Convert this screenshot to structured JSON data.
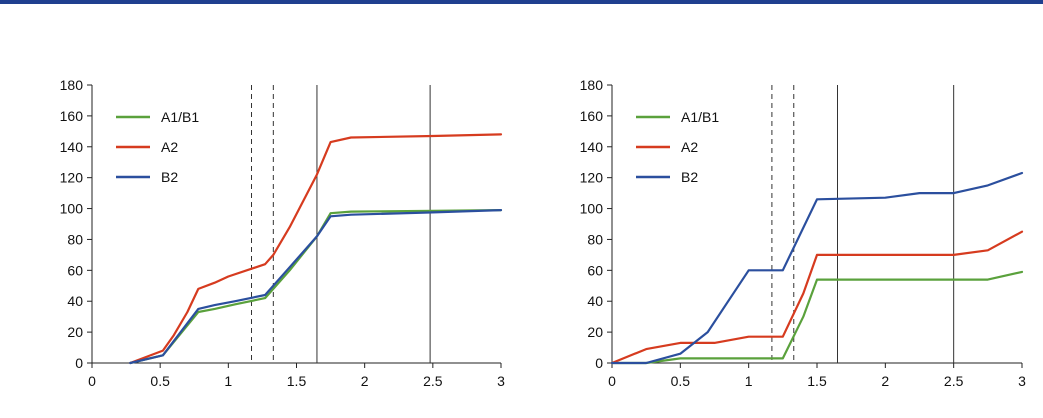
{
  "theme": {
    "top_rule_color": "#1f3f8f"
  },
  "chart_data": [
    {
      "type": "line",
      "xlim": [
        0,
        3
      ],
      "ylim": [
        0,
        180
      ],
      "xticks": [
        0,
        0.5,
        1,
        1.5,
        2,
        2.5,
        3
      ],
      "yticks": [
        0,
        20,
        40,
        60,
        80,
        100,
        120,
        140,
        160,
        180
      ],
      "grid": false,
      "legend_position": "top-left",
      "dashed_vlines": [
        1.17,
        1.33
      ],
      "solid_vlines": [
        1.65,
        2.48
      ],
      "series": [
        {
          "name": "A1/B1",
          "color": "#5aa13c",
          "points": [
            [
              0.28,
              0
            ],
            [
              0.52,
              5
            ],
            [
              0.78,
              33
            ],
            [
              0.9,
              35
            ],
            [
              1.05,
              38
            ],
            [
              1.27,
              42
            ],
            [
              1.45,
              60
            ],
            [
              1.65,
              82
            ],
            [
              1.75,
              97
            ],
            [
              1.9,
              98
            ],
            [
              2.5,
              98.5
            ],
            [
              3.0,
              99
            ]
          ]
        },
        {
          "name": "A2",
          "color": "#d63b1f",
          "points": [
            [
              0.28,
              0
            ],
            [
              0.52,
              8
            ],
            [
              0.6,
              18
            ],
            [
              0.7,
              33
            ],
            [
              0.78,
              48
            ],
            [
              0.9,
              52
            ],
            [
              1.0,
              56
            ],
            [
              1.27,
              64
            ],
            [
              1.33,
              70
            ],
            [
              1.45,
              88
            ],
            [
              1.65,
              122
            ],
            [
              1.75,
              143
            ],
            [
              1.9,
              146
            ],
            [
              2.5,
              147
            ],
            [
              3.0,
              148
            ]
          ]
        },
        {
          "name": "B2",
          "color": "#2b4f9e",
          "points": [
            [
              0.28,
              0
            ],
            [
              0.52,
              5
            ],
            [
              0.78,
              35
            ],
            [
              0.9,
              37.5
            ],
            [
              1.05,
              40
            ],
            [
              1.27,
              44
            ],
            [
              1.45,
              62
            ],
            [
              1.65,
              82
            ],
            [
              1.75,
              95
            ],
            [
              1.9,
              96
            ],
            [
              2.5,
              97.5
            ],
            [
              3.0,
              99
            ]
          ]
        }
      ]
    },
    {
      "type": "line",
      "xlim": [
        0,
        3
      ],
      "ylim": [
        0,
        180
      ],
      "xticks": [
        0,
        0.5,
        1,
        1.5,
        2,
        2.5,
        3
      ],
      "yticks": [
        0,
        20,
        40,
        60,
        80,
        100,
        120,
        140,
        160,
        180
      ],
      "grid": false,
      "legend_position": "top-left",
      "dashed_vlines": [
        1.17,
        1.33
      ],
      "solid_vlines": [
        1.65,
        2.5
      ],
      "series": [
        {
          "name": "A1/B1",
          "color": "#5aa13c",
          "points": [
            [
              0,
              0
            ],
            [
              0.25,
              0
            ],
            [
              0.5,
              3
            ],
            [
              1.2,
              3
            ],
            [
              1.25,
              3
            ],
            [
              1.4,
              30
            ],
            [
              1.5,
              54
            ],
            [
              2.0,
              54
            ],
            [
              2.5,
              54
            ],
            [
              2.75,
              54
            ],
            [
              3.0,
              59
            ]
          ]
        },
        {
          "name": "A2",
          "color": "#d63b1f",
          "points": [
            [
              0,
              0
            ],
            [
              0.25,
              9
            ],
            [
              0.5,
              13
            ],
            [
              0.75,
              13
            ],
            [
              1.0,
              17
            ],
            [
              1.25,
              17
            ],
            [
              1.4,
              45
            ],
            [
              1.5,
              70
            ],
            [
              2.0,
              70
            ],
            [
              2.5,
              70
            ],
            [
              2.75,
              73
            ],
            [
              3.0,
              85
            ]
          ]
        },
        {
          "name": "B2",
          "color": "#2b4f9e",
          "points": [
            [
              0,
              0
            ],
            [
              0.25,
              0
            ],
            [
              0.5,
              6
            ],
            [
              0.7,
              20
            ],
            [
              0.85,
              40
            ],
            [
              1.0,
              60
            ],
            [
              1.25,
              60
            ],
            [
              1.5,
              106
            ],
            [
              2.0,
              107
            ],
            [
              2.25,
              110
            ],
            [
              2.5,
              110
            ],
            [
              2.75,
              115
            ],
            [
              3.0,
              123
            ]
          ]
        }
      ]
    }
  ]
}
